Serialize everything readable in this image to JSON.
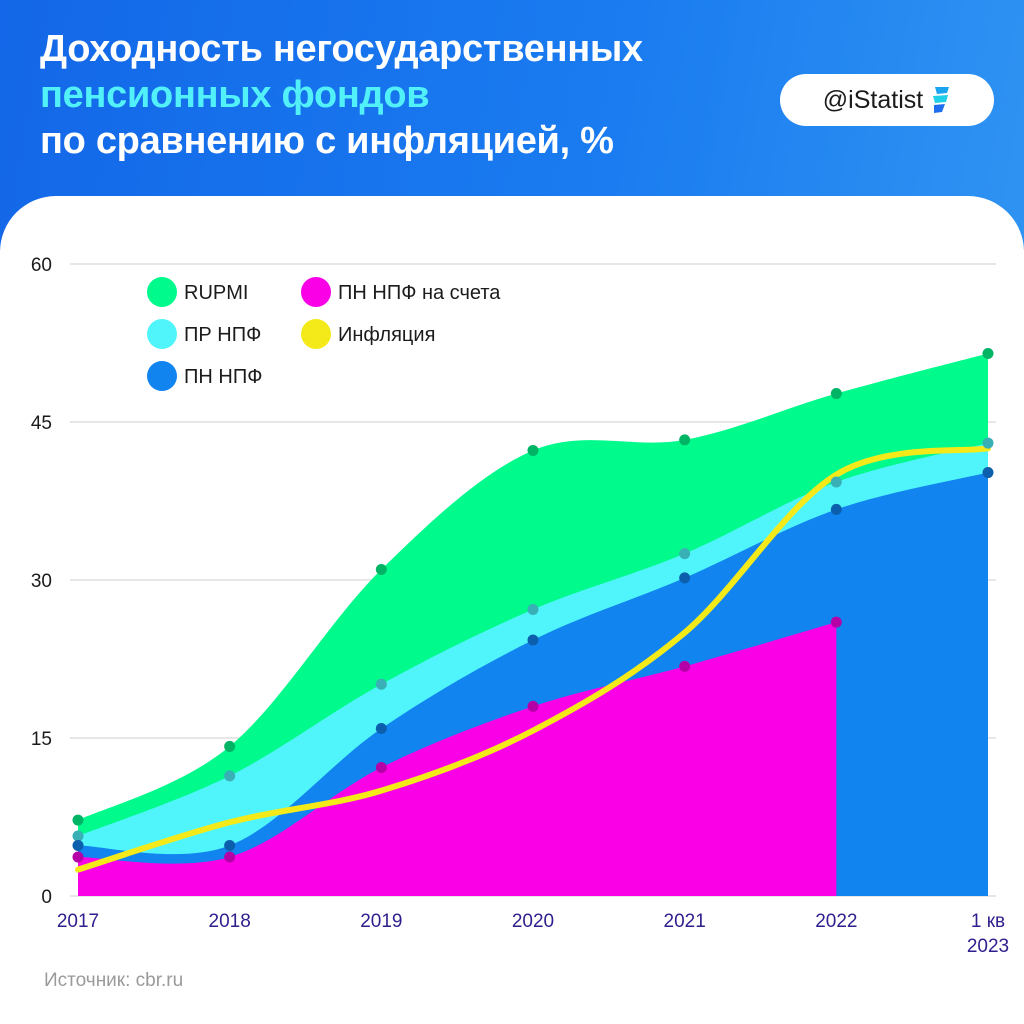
{
  "title": {
    "line1": "Доходность негосударственных",
    "line2": "пенсионных фондов",
    "line3": "по сравнению с инфляцией, %"
  },
  "badge": {
    "text": "@iStatist",
    "logo_icon": "istatist-leaf-logo"
  },
  "source": "Источник: cbr.ru",
  "colors": {
    "header": "#1770ea",
    "title_accent": "#52f0f8",
    "rupmi": "#00fa8c",
    "pr_npf": "#4ff5fb",
    "pn_npf": "#1184f0",
    "pn_npf_accounts": "#fa00e6",
    "inflation": "#f4ea1a",
    "axis_text": "#2e1f8f"
  },
  "chart_data": {
    "type": "area",
    "categories": [
      "2017",
      "2018",
      "2019",
      "2020",
      "2021",
      "2022",
      "1 кв 2023"
    ],
    "ylim": [
      0,
      60
    ],
    "yticks": [
      0,
      15,
      30,
      45,
      60
    ],
    "grid": true,
    "legend_position": "top-left",
    "series": [
      {
        "name": "RUPMI",
        "color": "#00fa8c",
        "values": [
          7.2,
          14.2,
          31.0,
          42.3,
          43.3,
          47.7,
          51.5
        ]
      },
      {
        "name": "ПР НПФ",
        "color": "#4ff5fb",
        "values": [
          5.7,
          11.4,
          20.1,
          27.2,
          32.5,
          39.3,
          43.0
        ]
      },
      {
        "name": "ПН НПФ",
        "color": "#1184f0",
        "values": [
          4.8,
          4.8,
          15.9,
          24.3,
          30.2,
          36.7,
          40.2
        ]
      },
      {
        "name": "ПН НПФ на счета",
        "color": "#fa00e6",
        "values": [
          3.7,
          3.7,
          12.2,
          18.0,
          21.8,
          26.0,
          null
        ]
      },
      {
        "name": "Инфляция",
        "color": "#f4ea1a",
        "type": "line",
        "values": [
          2.5,
          7.0,
          10.0,
          15.7,
          25.0,
          40.0,
          42.5
        ]
      }
    ]
  }
}
